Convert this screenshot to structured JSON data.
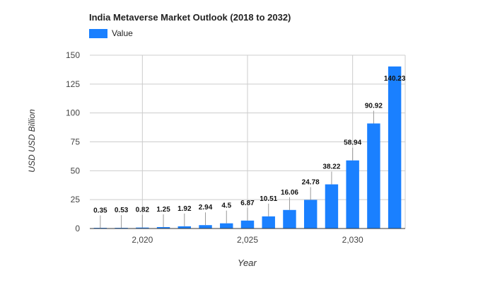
{
  "chart_data": {
    "type": "bar",
    "title": "India Metaverse Market Outlook (2018 to 2032)",
    "xlabel": "Year",
    "ylabel": "USD USD Billion",
    "legend": {
      "label": "Value",
      "position": "top-left"
    },
    "color": "#1a80ff",
    "ylim": [
      0,
      150
    ],
    "yticks": [
      0,
      25,
      50,
      75,
      100,
      125,
      150
    ],
    "xlim": [
      2017.5,
      2032.5
    ],
    "xticks": [
      2020,
      2025,
      2030
    ],
    "xtick_labels": [
      "2,020",
      "2,025",
      "2,030"
    ],
    "grid": true,
    "x": [
      2018,
      2019,
      2020,
      2021,
      2022,
      2023,
      2024,
      2025,
      2026,
      2027,
      2028,
      2029,
      2030,
      2031,
      2032
    ],
    "values": [
      0.35,
      0.53,
      0.82,
      1.25,
      1.92,
      2.94,
      4.5,
      6.87,
      10.51,
      16.06,
      24.78,
      38.22,
      58.94,
      90.92,
      140.23
    ],
    "data_labels": [
      "0.35",
      "0.53",
      "0.82",
      "1.25",
      "1.92",
      "2.94",
      "4.5",
      "6.87",
      "10.51",
      "16.06",
      "24.78",
      "38.22",
      "58.94",
      "90.92",
      "140.23"
    ]
  }
}
